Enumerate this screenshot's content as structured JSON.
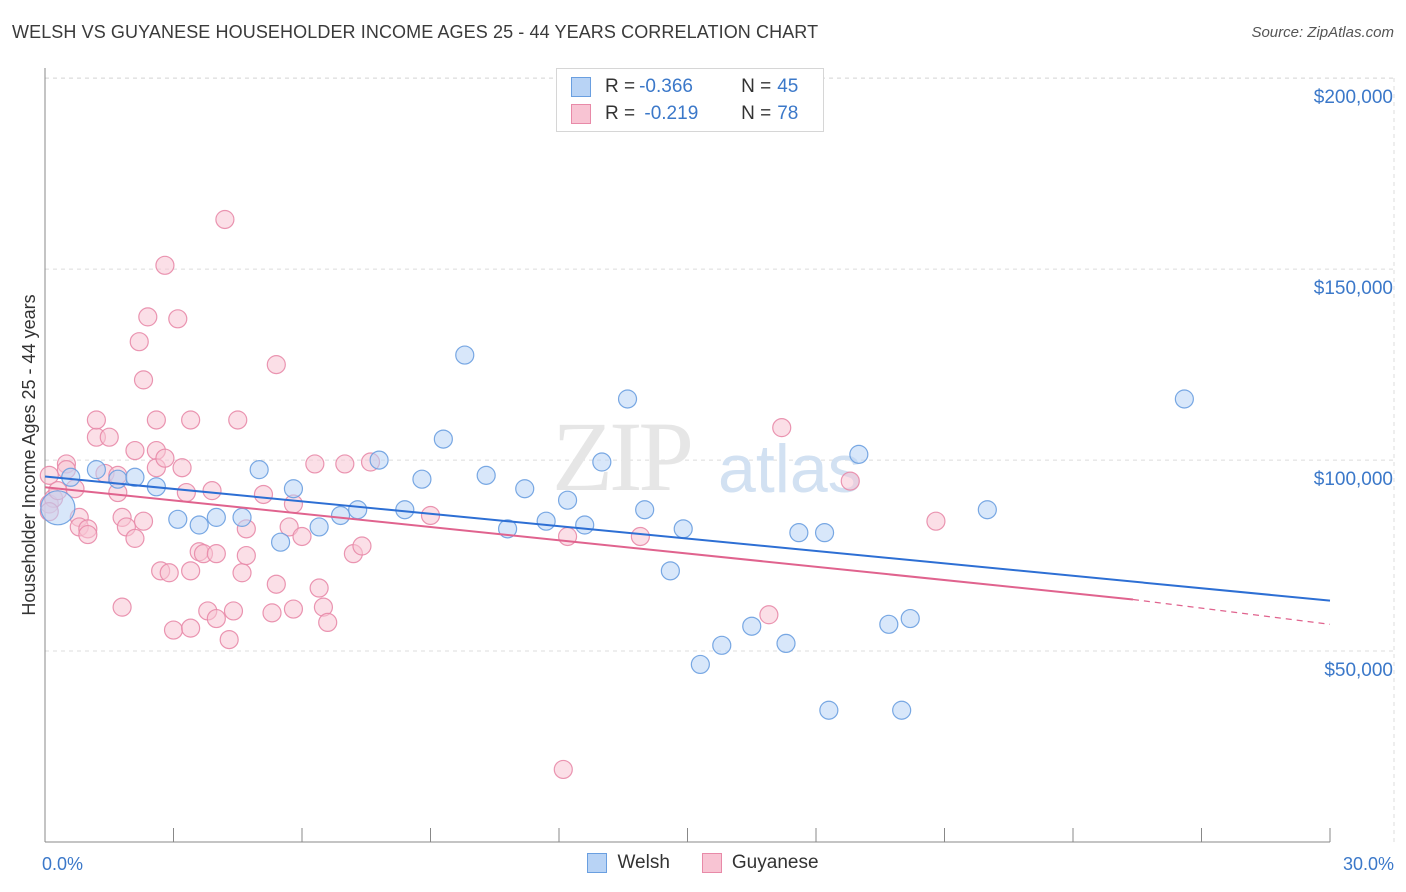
{
  "title": "WELSH VS GUYANESE HOUSEHOLDER INCOME AGES 25 - 44 YEARS CORRELATION CHART",
  "source": "Source: ZipAtlas.com",
  "legend": {
    "rows": [
      {
        "r_label": "R = ",
        "r_value": "-0.366",
        "n_label": "N = ",
        "n_value": "45"
      },
      {
        "r_label": "R = ",
        "r_value": " -0.219",
        "n_label": "N = ",
        "n_value": "78"
      }
    ]
  },
  "colors": {
    "welsh_fill": "#b8d3f5",
    "welsh_stroke": "#6a9fe0",
    "welsh_line": "#2d6fd4",
    "guyanese_fill": "#f8c4d3",
    "guyanese_stroke": "#e88aa8",
    "guyanese_line": "#e0638e",
    "grid": "#dcdcdc",
    "watermark": "#e6e6e6",
    "watermark_atlas": "#d2e1f2"
  },
  "watermark": {
    "zip": "ZIP",
    "atlas": "atlas"
  },
  "chart_data": {
    "type": "scatter",
    "title": "WELSH VS GUYANESE HOUSEHOLDER INCOME AGES 25 - 44 YEARS CORRELATION CHART",
    "xlabel": "",
    "ylabel": "Householder Income Ages 25 - 44 years",
    "xlim": [
      0,
      30
    ],
    "ylim": [
      0,
      210000
    ],
    "x_tick_labels": [
      "0.0%",
      "30.0%"
    ],
    "y_ticks": [
      {
        "value": 50000,
        "label": "$50,000"
      },
      {
        "value": 100000,
        "label": "$100,000"
      },
      {
        "value": 150000,
        "label": "$150,000"
      },
      {
        "value": 200000,
        "label": "$200,000"
      }
    ],
    "series": [
      {
        "name": "Welsh",
        "r": -0.366,
        "n": 45,
        "trend": {
          "x0": 0,
          "y0": 95700,
          "x1": 30,
          "y1": 63200
        },
        "points": [
          {
            "x": 0.3,
            "y": 87500,
            "big": true
          },
          {
            "x": 0.6,
            "y": 95500
          },
          {
            "x": 1.2,
            "y": 97500
          },
          {
            "x": 1.7,
            "y": 95000
          },
          {
            "x": 2.1,
            "y": 95500
          },
          {
            "x": 2.6,
            "y": 93000
          },
          {
            "x": 3.1,
            "y": 84500
          },
          {
            "x": 3.6,
            "y": 83000
          },
          {
            "x": 4.0,
            "y": 85000
          },
          {
            "x": 4.6,
            "y": 85000
          },
          {
            "x": 5.0,
            "y": 97500
          },
          {
            "x": 5.5,
            "y": 78500
          },
          {
            "x": 5.8,
            "y": 92500
          },
          {
            "x": 6.4,
            "y": 82500
          },
          {
            "x": 6.9,
            "y": 85500
          },
          {
            "x": 7.3,
            "y": 87000
          },
          {
            "x": 7.8,
            "y": 100000
          },
          {
            "x": 8.4,
            "y": 87000
          },
          {
            "x": 8.8,
            "y": 95000
          },
          {
            "x": 9.3,
            "y": 105500
          },
          {
            "x": 9.8,
            "y": 127500
          },
          {
            "x": 10.3,
            "y": 96000
          },
          {
            "x": 10.8,
            "y": 82000
          },
          {
            "x": 11.2,
            "y": 92500
          },
          {
            "x": 11.7,
            "y": 84000
          },
          {
            "x": 12.2,
            "y": 89500
          },
          {
            "x": 12.6,
            "y": 83000
          },
          {
            "x": 13.0,
            "y": 99500
          },
          {
            "x": 13.6,
            "y": 116000
          },
          {
            "x": 14.0,
            "y": 87000
          },
          {
            "x": 14.6,
            "y": 71000
          },
          {
            "x": 14.9,
            "y": 82000
          },
          {
            "x": 15.3,
            "y": 46500
          },
          {
            "x": 15.8,
            "y": 51500
          },
          {
            "x": 16.5,
            "y": 56500
          },
          {
            "x": 17.3,
            "y": 52000
          },
          {
            "x": 17.6,
            "y": 81000
          },
          {
            "x": 18.3,
            "y": 34500
          },
          {
            "x": 18.2,
            "y": 81000
          },
          {
            "x": 19.0,
            "y": 101500
          },
          {
            "x": 19.7,
            "y": 57000
          },
          {
            "x": 20.0,
            "y": 34500
          },
          {
            "x": 20.2,
            "y": 58500
          },
          {
            "x": 22.0,
            "y": 87000
          },
          {
            "x": 26.6,
            "y": 116000
          }
        ]
      },
      {
        "name": "Guyanese",
        "r": -0.219,
        "n": 78,
        "trend": {
          "x0": 0,
          "y0": 92900,
          "x1": 25.4,
          "y1": 63500
        },
        "trend_dashed": {
          "x0": 25.4,
          "y0": 63500,
          "x1": 30,
          "y1": 57000
        },
        "points": [
          {
            "x": 0.1,
            "y": 96000
          },
          {
            "x": 0.1,
            "y": 88500
          },
          {
            "x": 0.2,
            "y": 90000
          },
          {
            "x": 0.3,
            "y": 92000
          },
          {
            "x": 0.5,
            "y": 99000
          },
          {
            "x": 0.5,
            "y": 97500
          },
          {
            "x": 0.7,
            "y": 92500
          },
          {
            "x": 0.8,
            "y": 85000
          },
          {
            "x": 0.8,
            "y": 82500
          },
          {
            "x": 1.0,
            "y": 82000
          },
          {
            "x": 1.0,
            "y": 80500
          },
          {
            "x": 1.2,
            "y": 106000
          },
          {
            "x": 1.2,
            "y": 110500
          },
          {
            "x": 1.4,
            "y": 96500
          },
          {
            "x": 1.5,
            "y": 106000
          },
          {
            "x": 1.7,
            "y": 91500
          },
          {
            "x": 1.7,
            "y": 96000
          },
          {
            "x": 1.8,
            "y": 85000
          },
          {
            "x": 1.9,
            "y": 82500
          },
          {
            "x": 1.8,
            "y": 61500
          },
          {
            "x": 2.1,
            "y": 79500
          },
          {
            "x": 2.1,
            "y": 102500
          },
          {
            "x": 2.2,
            "y": 131000
          },
          {
            "x": 2.3,
            "y": 84000
          },
          {
            "x": 2.4,
            "y": 137500
          },
          {
            "x": 2.3,
            "y": 121000
          },
          {
            "x": 2.6,
            "y": 102500
          },
          {
            "x": 2.6,
            "y": 98000
          },
          {
            "x": 2.6,
            "y": 110500
          },
          {
            "x": 2.7,
            "y": 71000
          },
          {
            "x": 2.8,
            "y": 151000
          },
          {
            "x": 2.8,
            "y": 100500
          },
          {
            "x": 2.9,
            "y": 70500
          },
          {
            "x": 3.0,
            "y": 55500
          },
          {
            "x": 3.1,
            "y": 137000
          },
          {
            "x": 3.2,
            "y": 98000
          },
          {
            "x": 3.3,
            "y": 91500
          },
          {
            "x": 3.4,
            "y": 110500
          },
          {
            "x": 3.4,
            "y": 71000
          },
          {
            "x": 3.4,
            "y": 56000
          },
          {
            "x": 3.6,
            "y": 76000
          },
          {
            "x": 3.7,
            "y": 75500
          },
          {
            "x": 3.8,
            "y": 60500
          },
          {
            "x": 3.9,
            "y": 92000
          },
          {
            "x": 4.0,
            "y": 58500
          },
          {
            "x": 4.0,
            "y": 75500
          },
          {
            "x": 4.2,
            "y": 163000
          },
          {
            "x": 4.3,
            "y": 53000
          },
          {
            "x": 4.4,
            "y": 60500
          },
          {
            "x": 4.5,
            "y": 110500
          },
          {
            "x": 4.6,
            "y": 70500
          },
          {
            "x": 4.7,
            "y": 75000
          },
          {
            "x": 4.7,
            "y": 82000
          },
          {
            "x": 5.1,
            "y": 91000
          },
          {
            "x": 5.3,
            "y": 60000
          },
          {
            "x": 5.4,
            "y": 67500
          },
          {
            "x": 5.4,
            "y": 125000
          },
          {
            "x": 5.7,
            "y": 82500
          },
          {
            "x": 5.8,
            "y": 88500
          },
          {
            "x": 5.8,
            "y": 61000
          },
          {
            "x": 6.0,
            "y": 80000
          },
          {
            "x": 6.3,
            "y": 99000
          },
          {
            "x": 6.4,
            "y": 66500
          },
          {
            "x": 6.5,
            "y": 61500
          },
          {
            "x": 6.6,
            "y": 57500
          },
          {
            "x": 7.0,
            "y": 99000
          },
          {
            "x": 7.2,
            "y": 75500
          },
          {
            "x": 7.4,
            "y": 77500
          },
          {
            "x": 7.6,
            "y": 99500
          },
          {
            "x": 9.0,
            "y": 85500
          },
          {
            "x": 12.2,
            "y": 80000
          },
          {
            "x": 12.1,
            "y": 19000
          },
          {
            "x": 13.9,
            "y": 80000
          },
          {
            "x": 16.9,
            "y": 59500
          },
          {
            "x": 17.2,
            "y": 108500
          },
          {
            "x": 18.8,
            "y": 94500
          },
          {
            "x": 20.8,
            "y": 84000
          },
          {
            "x": 0.1,
            "y": 86500
          }
        ]
      }
    ]
  },
  "bottom_legend": {
    "welsh": "Welsh",
    "guyanese": "Guyanese"
  }
}
